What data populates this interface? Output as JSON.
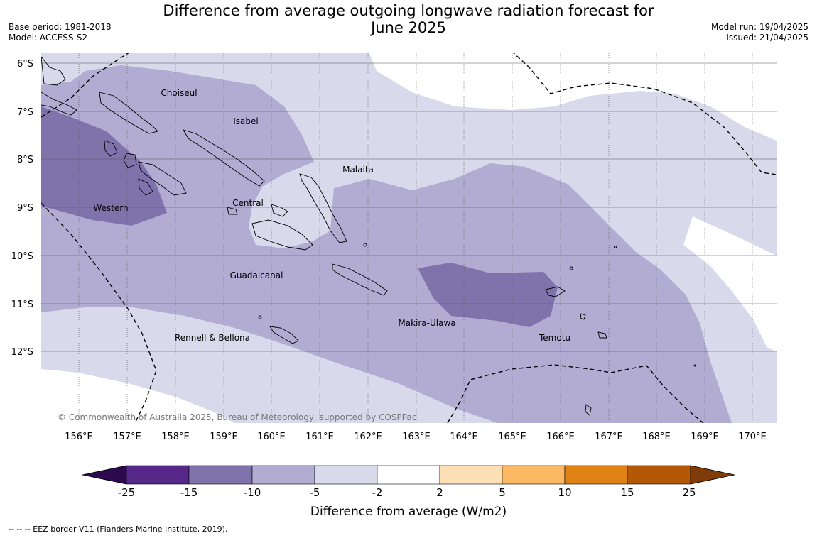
{
  "title_line1": "Difference from average outgoing longwave radiation forecast for",
  "title_line2": "June 2025",
  "base_period": "Base period: 1981-2018",
  "model": "Model: ACCESS-S2",
  "model_run": "Model run: 19/04/2025",
  "issued": "Issued: 21/04/2025",
  "copyright": "© Commonwealth of Australia 2025, Bureau of Meteorology, supported by COSPPac",
  "lat_labels": [
    "6°S",
    "7°S",
    "8°S",
    "9°S",
    "10°S",
    "11°S",
    "12°S"
  ],
  "lon_labels": [
    "156°E",
    "157°E",
    "158°E",
    "159°E",
    "160°E",
    "161°E",
    "162°E",
    "163°E",
    "164°E",
    "165°E",
    "166°E",
    "167°E",
    "168°E",
    "169°E",
    "170°E"
  ],
  "region_labels": [
    "Choiseul",
    "Isabel",
    "Malaita",
    "Central",
    "Western",
    "Guadalcanal",
    "Makira-Ulawa",
    "Rennell & Bellona",
    "Temotu"
  ],
  "legend": {
    "title": "Difference from average (W/m2)",
    "ticks": [
      "-25",
      "-15",
      "-10",
      "-5",
      "-2",
      "2",
      "5",
      "10",
      "15",
      "25"
    ],
    "colors": {
      "below_min": "#2d0a4e",
      "bins": [
        "#542789",
        "#8073ac",
        "#b2abd2",
        "#d8daeb",
        "#ffffff",
        "#fee0b6",
        "#fdb863",
        "#e08214",
        "#b35806"
      ],
      "above_max": "#7f3b08"
    }
  },
  "footnote": "--  --  -- EEZ border V11 (Flanders Marine Institute, 2019)."
}
